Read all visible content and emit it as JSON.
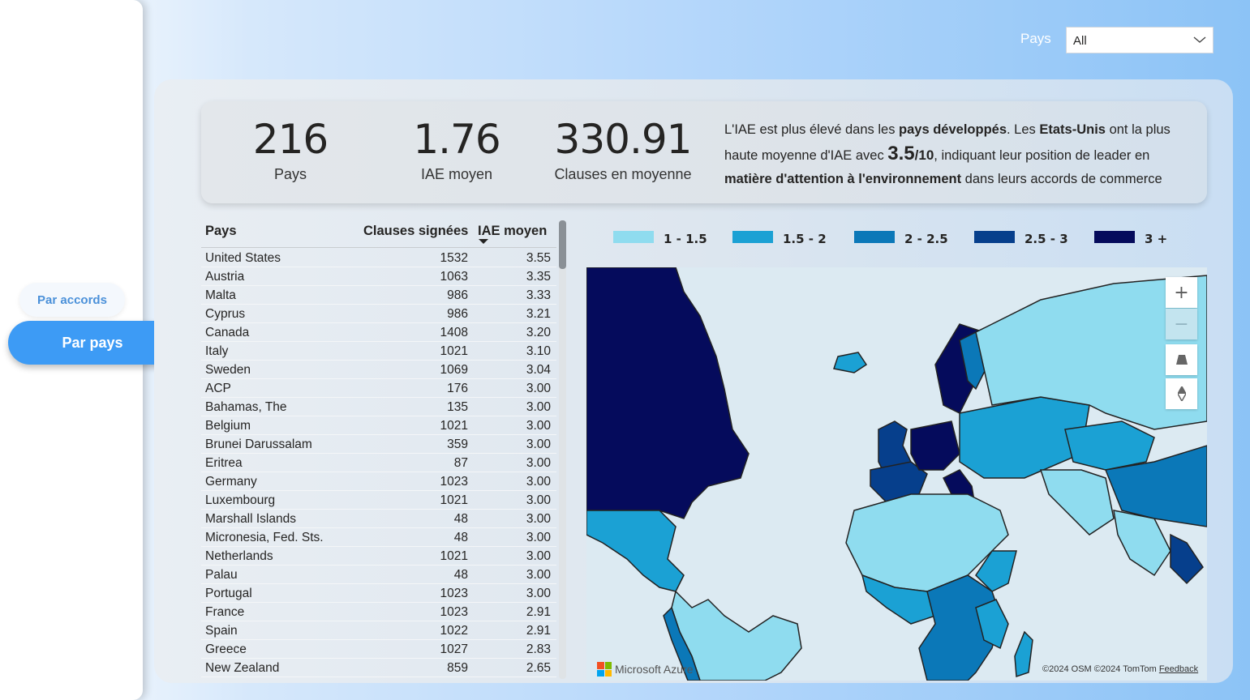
{
  "nav": {
    "accords_label": "Par accords",
    "pays_label": "Par pays"
  },
  "filter": {
    "label": "Pays",
    "value": "All"
  },
  "kpis": [
    {
      "value": "216",
      "label": "Pays"
    },
    {
      "value": "1.76",
      "label": "IAE moyen"
    },
    {
      "value": "330.91",
      "label": "Clauses en moyenne"
    }
  ],
  "insight": {
    "t1": "L'IAE est plus élevé dans les ",
    "b1": "pays développés",
    "t2": ". Les ",
    "b2": "Etats-Unis",
    "t3": " ont la plus haute moyenne d'IAE avec ",
    "big": "3.5",
    "med": "/10",
    "t4": ", indiquant leur position de leader en ",
    "b3": "matière d'attention à l'environnement",
    "t5": " dans leurs accords de commerce"
  },
  "table": {
    "headers": [
      "Pays",
      "Clauses signées",
      "IAE moyen"
    ],
    "sort_column": "IAE moyen",
    "sort_direction": "desc",
    "rows": [
      [
        "United States",
        "1532",
        "3.55"
      ],
      [
        "Austria",
        "1063",
        "3.35"
      ],
      [
        "Malta",
        "986",
        "3.33"
      ],
      [
        "Cyprus",
        "986",
        "3.21"
      ],
      [
        "Canada",
        "1408",
        "3.20"
      ],
      [
        "Italy",
        "1021",
        "3.10"
      ],
      [
        "Sweden",
        "1069",
        "3.04"
      ],
      [
        "ACP",
        "176",
        "3.00"
      ],
      [
        "Bahamas, The",
        "135",
        "3.00"
      ],
      [
        "Belgium",
        "1021",
        "3.00"
      ],
      [
        "Brunei Darussalam",
        "359",
        "3.00"
      ],
      [
        "Eritrea",
        "87",
        "3.00"
      ],
      [
        "Germany",
        "1023",
        "3.00"
      ],
      [
        "Luxembourg",
        "1021",
        "3.00"
      ],
      [
        "Marshall Islands",
        "48",
        "3.00"
      ],
      [
        "Micronesia, Fed. Sts.",
        "48",
        "3.00"
      ],
      [
        "Netherlands",
        "1021",
        "3.00"
      ],
      [
        "Palau",
        "48",
        "3.00"
      ],
      [
        "Portugal",
        "1023",
        "3.00"
      ],
      [
        "France",
        "1023",
        "2.91"
      ],
      [
        "Spain",
        "1022",
        "2.91"
      ],
      [
        "Greece",
        "1027",
        "2.83"
      ],
      [
        "New Zealand",
        "859",
        "2.65"
      ]
    ]
  },
  "legend": [
    {
      "label": "1 - 1.5",
      "color": "#8fdcef"
    },
    {
      "label": "1.5 - 2",
      "color": "#1ba1d4"
    },
    {
      "label": "2 - 2.5",
      "color": "#0b78b8"
    },
    {
      "label": "2.5 - 3",
      "color": "#063f8c"
    },
    {
      "label": "3 +",
      "color": "#050b5c"
    }
  ],
  "map": {
    "controls": [
      "zoom-in",
      "zoom-out",
      "tilt",
      "rotate"
    ],
    "provider": "Microsoft Azure",
    "copyright": "©2024 OSM",
    "copyright2": "©2024 TomTom",
    "feedback": "Feedback"
  }
}
